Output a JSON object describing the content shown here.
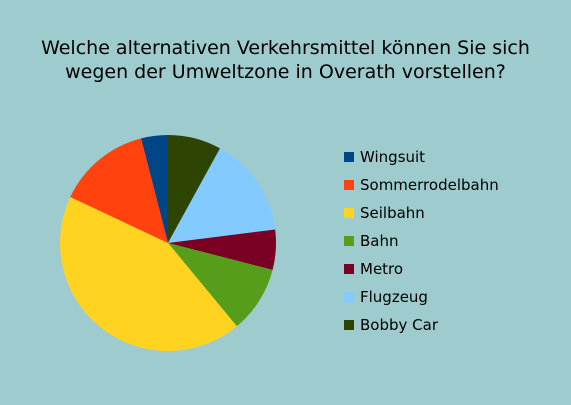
{
  "chart_data": {
    "type": "pie",
    "title_lines": [
      "Welche alternativen Verkehrsmittel können Sie sich",
      "wegen der Umweltzone in Overath vorstellen?"
    ],
    "slices": [
      {
        "label": "Bobby Car",
        "value": 8,
        "color": "#2e4402"
      },
      {
        "label": "Flugzeug",
        "value": 15,
        "color": "#82caff"
      },
      {
        "label": "Metro",
        "value": 6,
        "color": "#7a0023"
      },
      {
        "label": "Bahn",
        "value": 10,
        "color": "#579d1c"
      },
      {
        "label": "Seilbahn",
        "value": 43,
        "color": "#ffd320"
      },
      {
        "label": "Sommerrodelbahn",
        "value": 14,
        "color": "#ff420e"
      },
      {
        "label": "Wingsuit",
        "value": 4,
        "color": "#004586"
      }
    ],
    "legend": [
      {
        "label": "Wingsuit",
        "color": "#004586"
      },
      {
        "label": "Sommerrodelbahn",
        "color": "#ff420e"
      },
      {
        "label": "Seilbahn",
        "color": "#ffd320"
      },
      {
        "label": "Bahn",
        "color": "#579d1c"
      },
      {
        "label": "Metro",
        "color": "#7a0023"
      },
      {
        "label": "Flugzeug",
        "color": "#82caff"
      },
      {
        "label": "Bobby Car",
        "color": "#2e4402"
      }
    ],
    "legend_position": "right",
    "background_color": "#9ecbcd"
  }
}
